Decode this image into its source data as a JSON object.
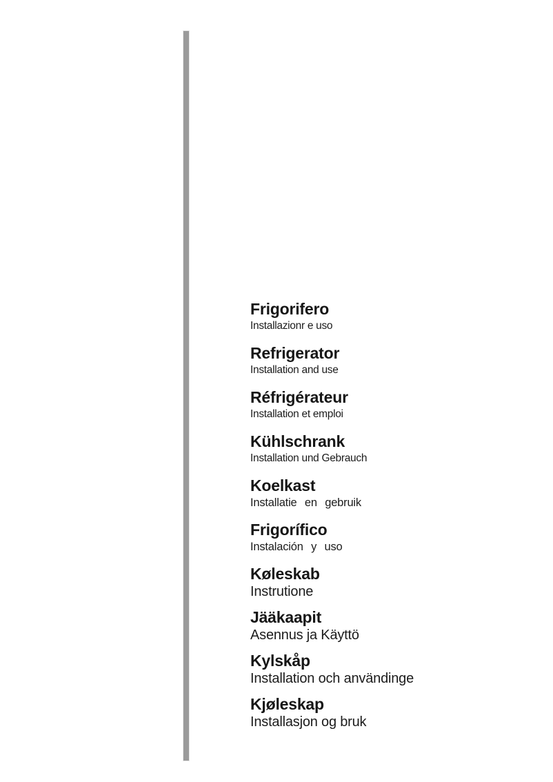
{
  "page": {
    "background": "#ffffff",
    "rule_color": "#9b9b9b",
    "text_color": "#161616"
  },
  "entries": [
    {
      "lang": "italian",
      "title": "Frigorifero",
      "subtitle": "Installazionr e uso"
    },
    {
      "lang": "english",
      "title": "Refrigerator",
      "subtitle": "Installation and use"
    },
    {
      "lang": "french",
      "title": "Réfrigérateur",
      "subtitle": "Installation et emploi"
    },
    {
      "lang": "german",
      "title": "Kühlschrank",
      "subtitle": "Installation und Gebrauch"
    },
    {
      "lang": "dutch",
      "title": "Koelkast",
      "subtitle": "Installatie en gebruik"
    },
    {
      "lang": "spanish",
      "title": "Frigorífico",
      "subtitle": "Instalación y uso"
    },
    {
      "lang": "danish",
      "title": "Køleskab",
      "subtitle": "Instrutione"
    },
    {
      "lang": "finnish",
      "title": "Jääkaapit",
      "subtitle": "Asennus ja Käyttö"
    },
    {
      "lang": "swedish",
      "title": "Kylskåp",
      "subtitle": "Installation och användinge"
    },
    {
      "lang": "norwegian",
      "title": "Kjøleskap",
      "subtitle": "Installasjon og bruk"
    }
  ]
}
